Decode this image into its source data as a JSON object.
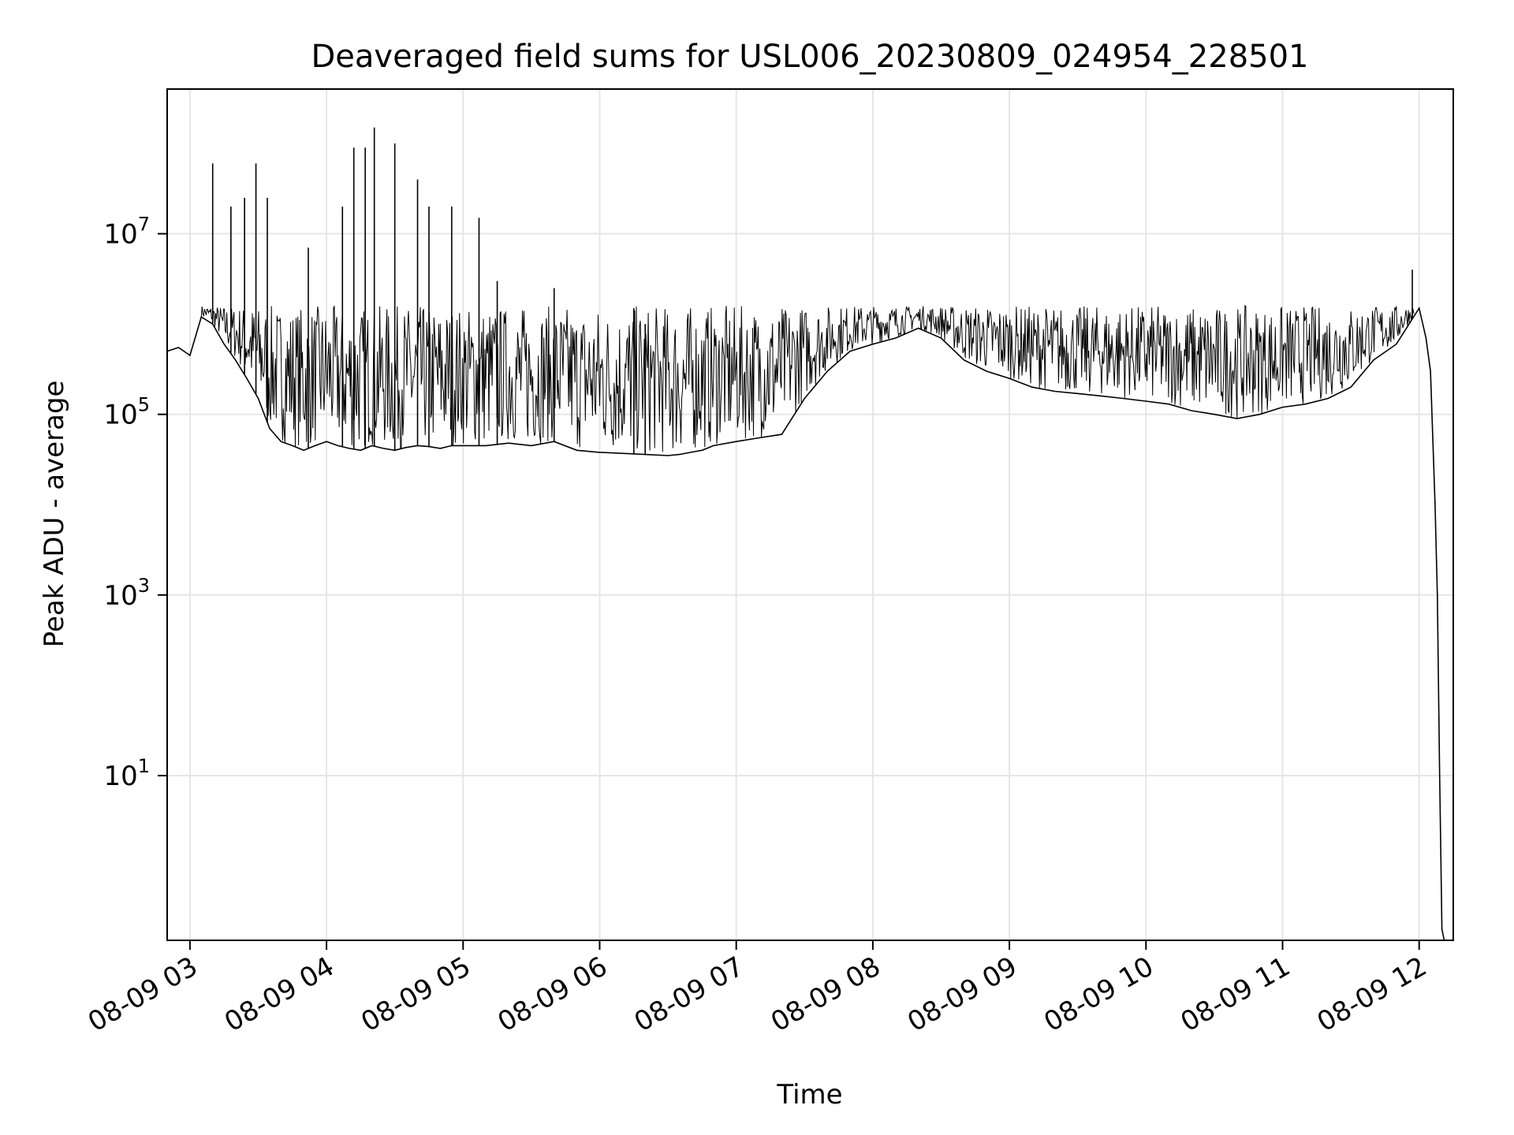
{
  "chart_data": {
    "type": "line",
    "title": "Deaveraged field sums for USL006_20230809_024954_228501",
    "xlabel": "Time",
    "ylabel": "Peak ADU - average",
    "yscale": "log",
    "grid": true,
    "xlim": [
      "2023-08-09 02:50",
      "2023-08-09 12:15"
    ],
    "ylim": [
      0.15,
      400000000.0
    ],
    "x_ticks": [
      "08-09 03",
      "08-09 04",
      "08-09 05",
      "08-09 06",
      "08-09 07",
      "08-09 08",
      "08-09 09",
      "08-09 10",
      "08-09 11",
      "08-09 12"
    ],
    "y_ticks": [
      {
        "base": "10",
        "exp": "1",
        "value": 10
      },
      {
        "base": "10",
        "exp": "3",
        "value": 1000
      },
      {
        "base": "10",
        "exp": "5",
        "value": 100000
      },
      {
        "base": "10",
        "exp": "7",
        "value": 10000000
      }
    ],
    "line_color": "#000000",
    "series": [
      {
        "x": [
          "02:50",
          "02:55",
          "03:00",
          "03:05",
          "03:10",
          "03:15",
          "03:20",
          "03:25",
          "03:30",
          "03:35",
          "03:40",
          "03:45",
          "03:50",
          "03:55",
          "04:00",
          "04:05",
          "04:10",
          "04:15",
          "04:20",
          "04:25",
          "04:30",
          "04:35",
          "04:40",
          "04:45",
          "04:50",
          "04:55",
          "05:00",
          "05:10",
          "05:20",
          "05:30",
          "05:40",
          "05:50",
          "06:00",
          "06:10",
          "06:20",
          "06:30",
          "06:35",
          "06:40",
          "06:45",
          "06:50",
          "07:00",
          "07:10",
          "07:20",
          "07:30",
          "07:40",
          "07:50",
          "08:00",
          "08:10",
          "08:20",
          "08:30",
          "08:40",
          "08:50",
          "09:00",
          "09:10",
          "09:20",
          "09:30",
          "09:40",
          "09:50",
          "10:00",
          "10:10",
          "10:20",
          "10:30",
          "10:40",
          "10:50",
          "11:00",
          "11:10",
          "11:20",
          "11:30",
          "11:40",
          "11:50",
          "12:00",
          "12:03",
          "12:05",
          "12:07",
          "12:08",
          "12:09",
          "12:10",
          "12:11"
        ],
        "y": [
          500000,
          550000,
          450000,
          1200000,
          1000000,
          600000,
          400000,
          250000,
          150000,
          70000,
          50000,
          45000,
          40000,
          45000,
          50000,
          45000,
          42000,
          40000,
          45000,
          42000,
          40000,
          43000,
          45000,
          44000,
          42000,
          45000,
          45000,
          45000,
          48000,
          45000,
          50000,
          40000,
          38000,
          37000,
          36000,
          35000,
          36000,
          38000,
          40000,
          45000,
          50000,
          55000,
          60000,
          150000,
          300000,
          500000,
          600000,
          700000,
          900000,
          700000,
          400000,
          300000,
          250000,
          200000,
          180000,
          170000,
          160000,
          150000,
          140000,
          130000,
          110000,
          100000,
          90000,
          100000,
          120000,
          130000,
          150000,
          200000,
          400000,
          600000,
          1500000,
          700000,
          300000,
          10000,
          1000,
          10,
          0.2,
          0.15
        ]
      },
      {
        "name": "",
        "x": [
          "03:10",
          "03:18",
          "03:24",
          "03:29",
          "03:34",
          "03:52",
          "04:07",
          "04:12",
          "04:17",
          "04:21",
          "04:30",
          "04:40",
          "04:45",
          "04:55",
          "05:07",
          "05:15",
          "05:40",
          "06:15",
          "06:20",
          "11:57"
        ],
        "y": [
          60000000,
          20000000,
          25000000,
          60000000,
          25000000,
          7000000,
          20000000,
          90000000,
          90000000,
          150000000,
          100000000,
          40000000,
          20000000,
          20000000,
          15000000,
          3000000,
          2500000,
          1500000,
          1000000,
          4000000
        ]
      }
    ]
  }
}
